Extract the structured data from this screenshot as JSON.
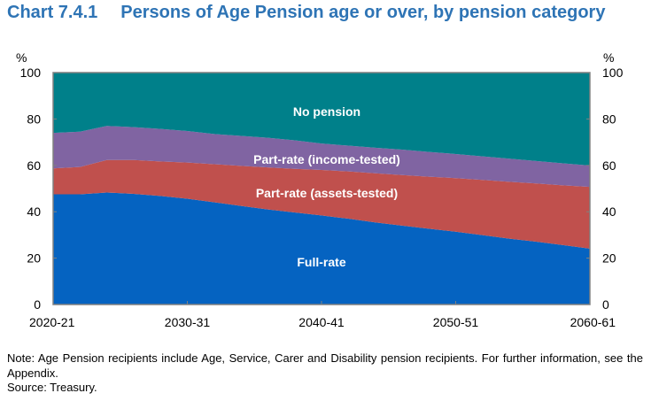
{
  "title": {
    "number": "Chart 7.4.1",
    "text": "Persons of Age Pension age or over, by pension category"
  },
  "chart_data": {
    "type": "area",
    "stacked": true,
    "title": "Persons of Age Pension age or over, by pension category",
    "ylabel_left": "%",
    "ylabel_right": "%",
    "ylim": [
      0,
      100
    ],
    "yticks": [
      0,
      20,
      40,
      60,
      80,
      100
    ],
    "x_years_from_start": [
      0,
      2,
      4,
      6,
      8,
      10,
      12,
      14,
      16,
      18,
      20,
      22,
      24,
      26,
      28,
      30,
      32,
      34,
      36,
      38,
      40
    ],
    "xlim": [
      0,
      40
    ],
    "xticks": [
      {
        "at": 0,
        "label": "2020-21"
      },
      {
        "at": 10,
        "label": "2030-31"
      },
      {
        "at": 20,
        "label": "2040-41"
      },
      {
        "at": 30,
        "label": "2050-51"
      },
      {
        "at": 40,
        "label": "2060-61"
      }
    ],
    "series": [
      {
        "name": "Full-rate",
        "color": "#0563C1",
        "values": [
          47.5,
          47.5,
          48.3,
          47.7,
          46.8,
          45.6,
          44.1,
          42.5,
          41.0,
          39.7,
          38.4,
          37.0,
          35.4,
          34.0,
          32.7,
          31.4,
          29.9,
          28.4,
          27.1,
          25.6,
          24.1
        ]
      },
      {
        "name": "Part-rate (assets-tested)",
        "color": "#C0504D",
        "values": [
          11.2,
          11.8,
          14.0,
          14.6,
          14.9,
          15.6,
          16.4,
          17.3,
          18.1,
          18.8,
          19.6,
          20.4,
          21.2,
          21.8,
          22.4,
          23.1,
          23.8,
          24.5,
          25.1,
          25.8,
          26.6
        ]
      },
      {
        "name": "Part-rate (income-tested)",
        "color": "#8064A2",
        "values": [
          15.3,
          15.2,
          14.7,
          14.2,
          14.0,
          13.6,
          13.0,
          12.9,
          12.8,
          12.3,
          11.4,
          11.1,
          11.0,
          11.0,
          10.7,
          10.4,
          10.2,
          10.0,
          9.7,
          9.5,
          9.2
        ]
      },
      {
        "name": "No pension",
        "color": "#00808A",
        "values": [
          26.0,
          25.5,
          23.0,
          23.5,
          24.3,
          25.2,
          26.5,
          27.3,
          28.1,
          29.2,
          30.6,
          31.5,
          32.4,
          33.2,
          34.2,
          35.1,
          36.1,
          37.1,
          38.1,
          39.1,
          40.1
        ]
      }
    ],
    "annotations": [
      "No pension",
      "Part-rate (income-tested)",
      "Part-rate (assets-tested)",
      "Full-rate"
    ],
    "legend": "none (inline labels)",
    "grid": false
  },
  "note": "Note: Age Pension recipients include Age, Service, Carer and Disability pension recipients. For further information, see the Appendix.",
  "source": "Source: Treasury."
}
